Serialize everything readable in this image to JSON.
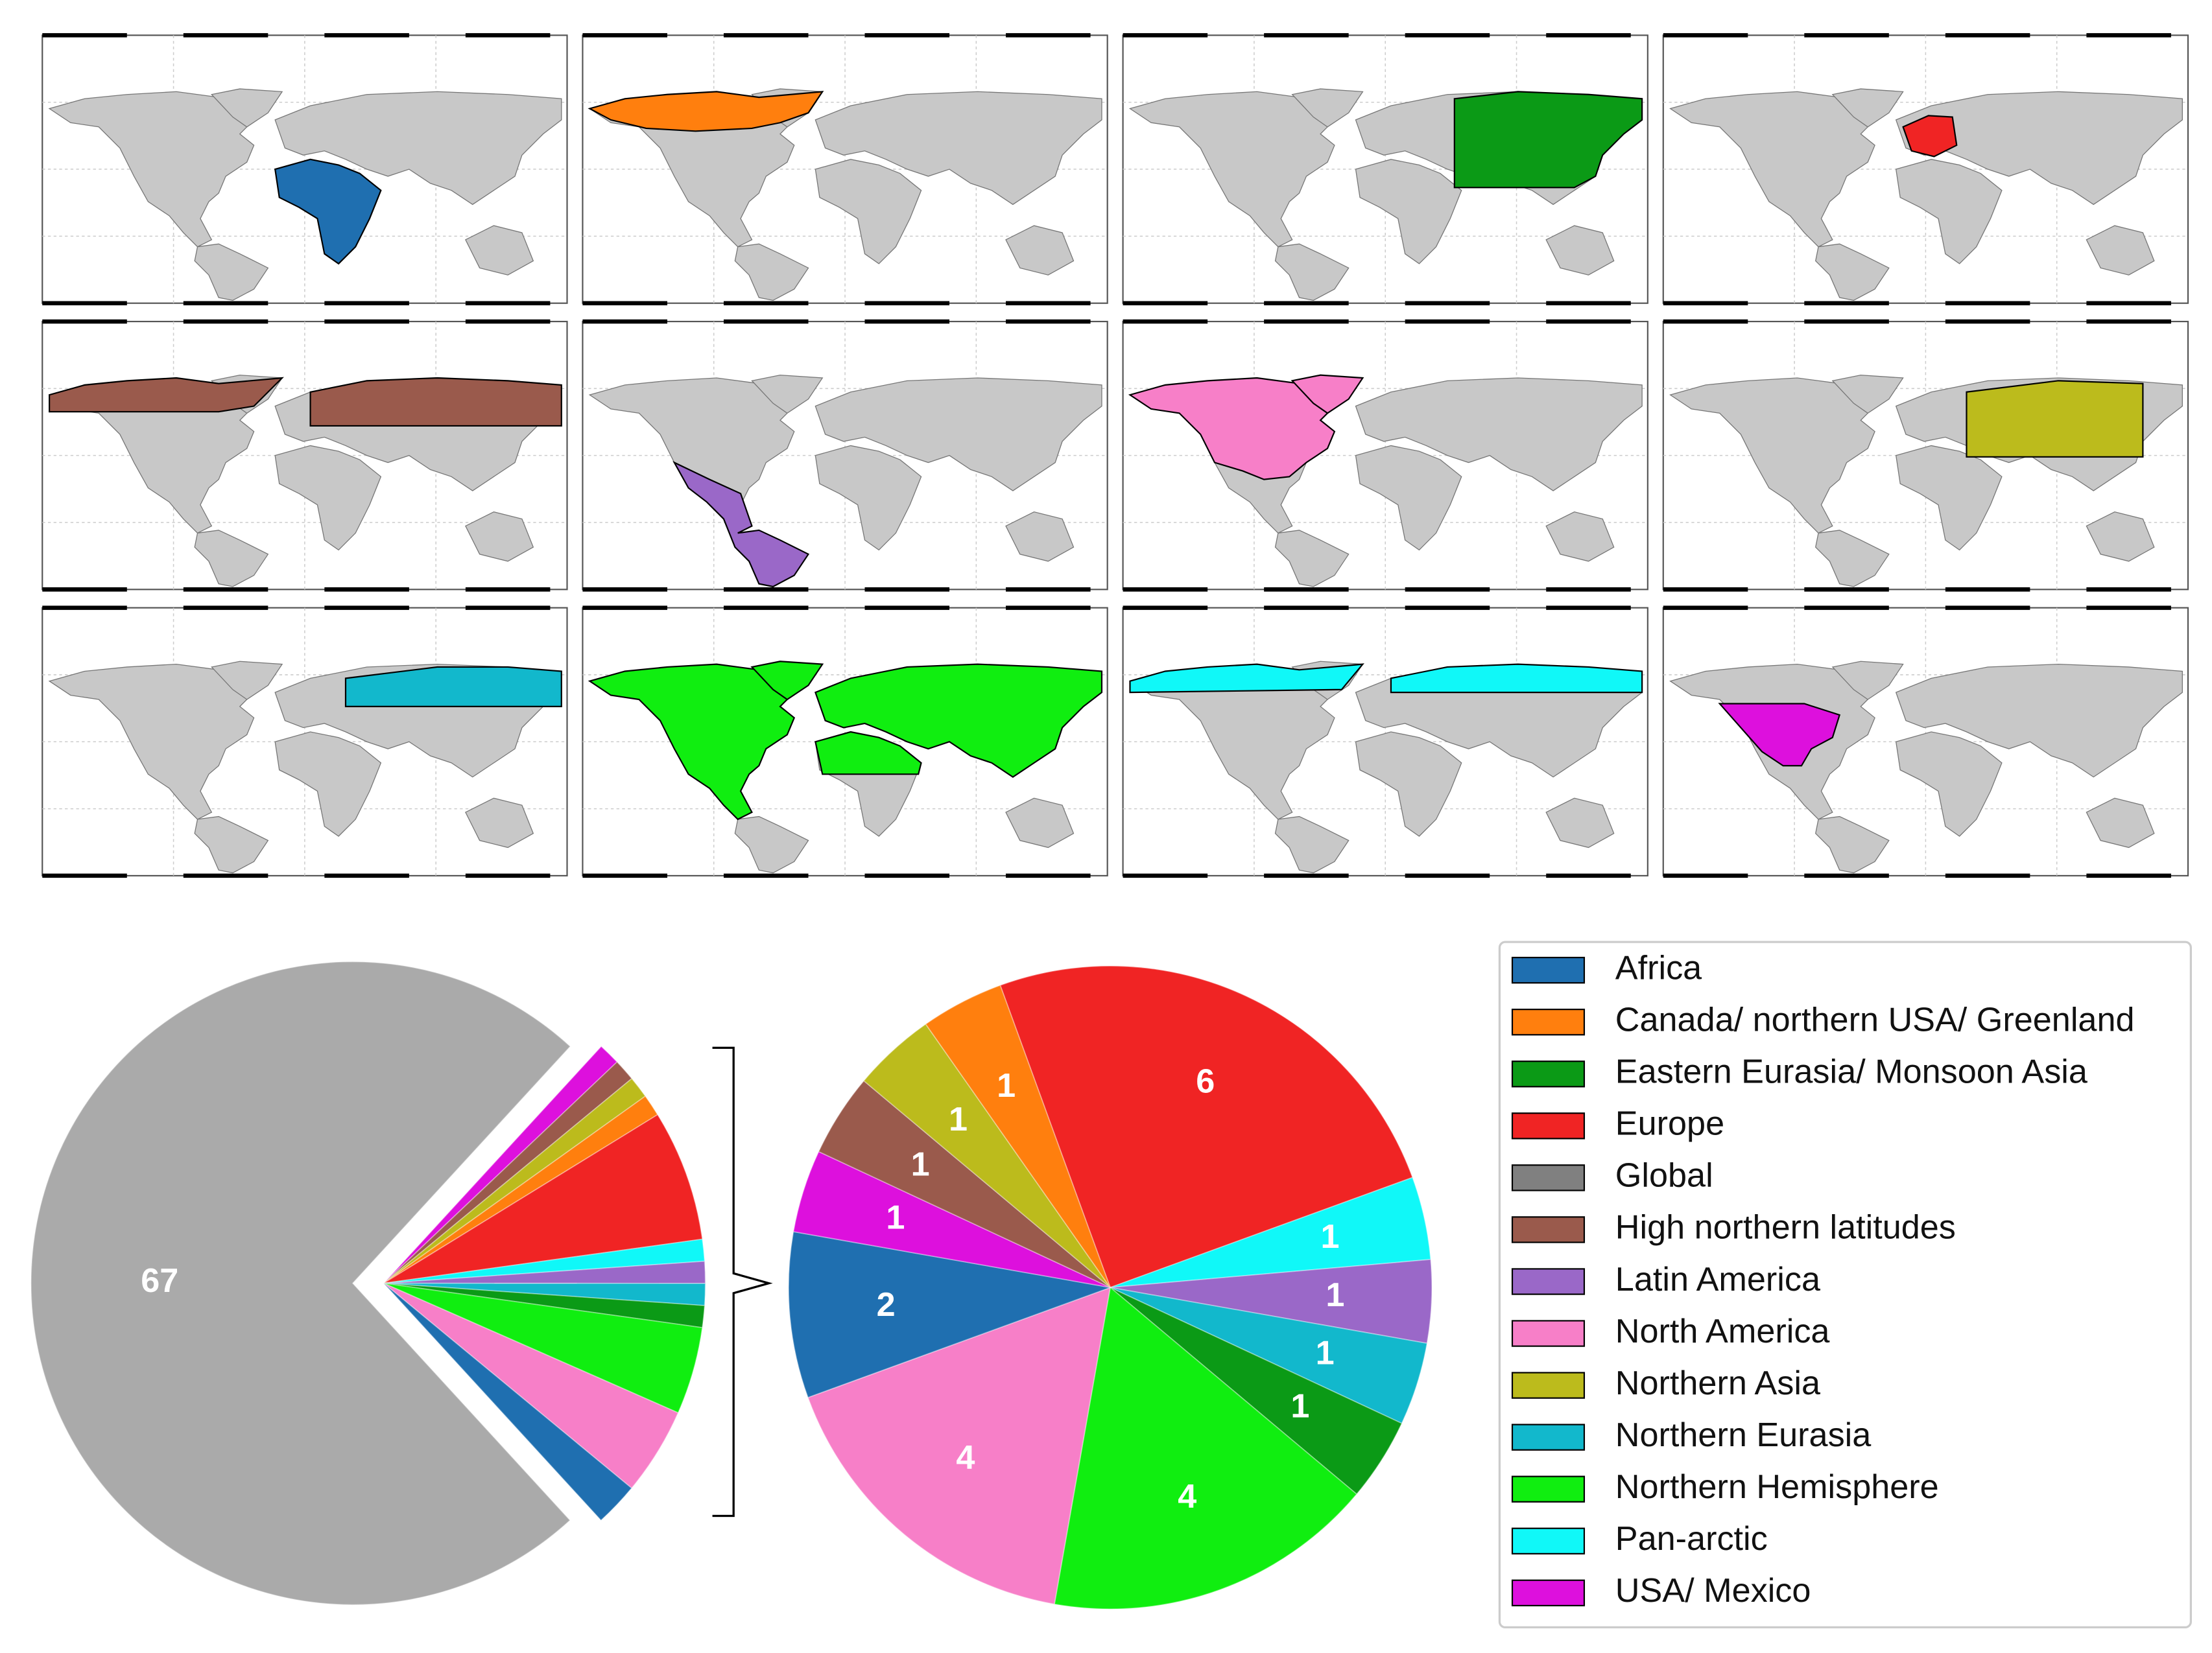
{
  "legend": {
    "entries": [
      {
        "name": "Africa",
        "color": "#1f6fb0"
      },
      {
        "name": "Canada/ northern USA/ Greenland",
        "color": "#ff7f0e"
      },
      {
        "name": "Eastern Eurasia/ Monsoon Asia",
        "color": "#0b9a16"
      },
      {
        "name": "Europe",
        "color": "#f02424"
      },
      {
        "name": "Global",
        "color": "#808080"
      },
      {
        "name": "High northern latitudes",
        "color": "#9a5a4c"
      },
      {
        "name": "Latin America",
        "color": "#9a68c8"
      },
      {
        "name": "North America",
        "color": "#f77fc8"
      },
      {
        "name": "Northern Asia",
        "color": "#bcbb1c"
      },
      {
        "name": "Northern Eurasia",
        "color": "#12b8cc"
      },
      {
        "name": "Northern Hemisphere",
        "color": "#10ee10"
      },
      {
        "name": "Pan-arctic",
        "color": "#10f8f8"
      },
      {
        "name": "USA/ Mexico",
        "color": "#dd10dd"
      }
    ]
  },
  "chart_data": [
    {
      "type": "pie",
      "values": [
        67,
        1,
        1,
        1,
        1,
        6,
        1,
        1,
        1,
        1,
        4,
        4,
        2
      ],
      "value_labels": [
        "67",
        null,
        null,
        null,
        null,
        null,
        null,
        null,
        null,
        null,
        null,
        null,
        null
      ],
      "colors": [
        "#aaaaaa",
        "#dd10dd",
        "#9a5a4c",
        "#bcbb1c",
        "#ff7f0e",
        "#f02424",
        "#10f8f8",
        "#9a68c8",
        "#12b8cc",
        "#0b9a16",
        "#10ee10",
        "#f77fc8",
        "#1f6fb0"
      ]
    },
    {
      "type": "pie",
      "values": [
        6,
        1,
        1,
        1,
        1,
        4,
        4,
        2,
        1,
        1,
        1,
        1
      ],
      "colors": [
        "#f02424",
        "#10f8f8",
        "#9a68c8",
        "#12b8cc",
        "#0b9a16",
        "#10ee10",
        "#f77fc8",
        "#1f6fb0",
        "#dd10dd",
        "#9a5a4c",
        "#bcbb1c",
        "#ff7f0e"
      ]
    }
  ]
}
